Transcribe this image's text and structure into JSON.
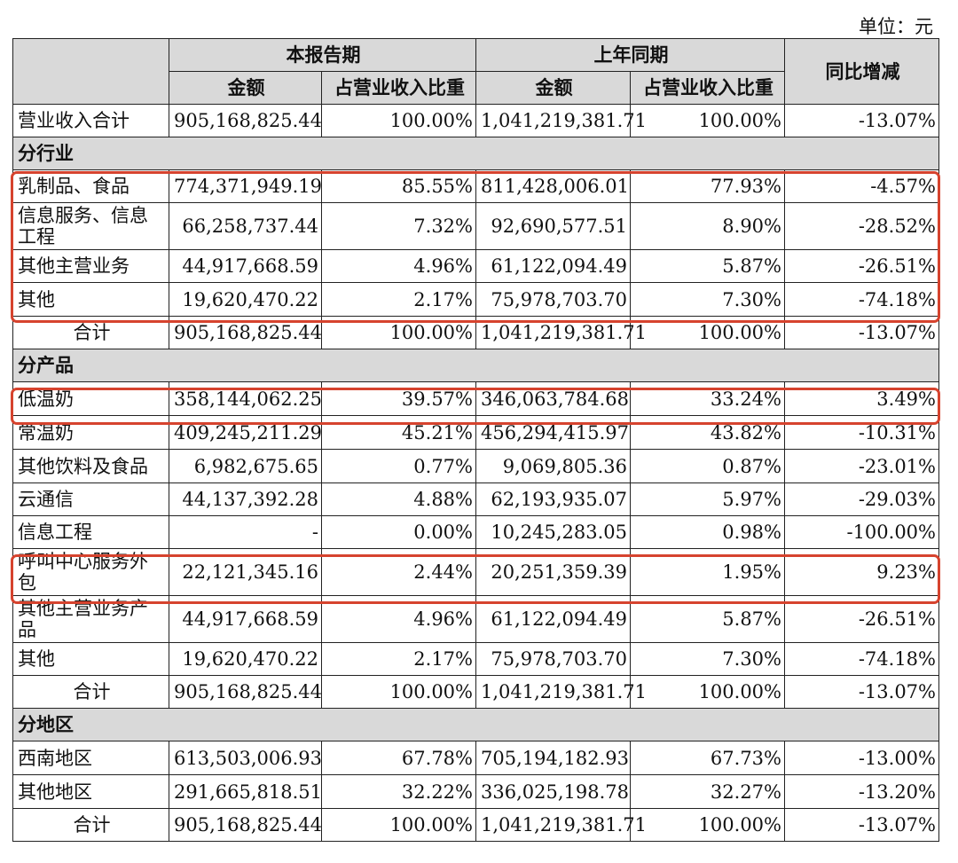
{
  "unit_label": "单位：元",
  "header": {
    "current_period": "本报告期",
    "prior_period": "上年同期",
    "yoy_change": "同比增减",
    "amount": "金额",
    "share": "占营业收入比重"
  },
  "total_revenue": {
    "label": "营业收入合计",
    "cur_amount": "905,168,825.44",
    "cur_share": "100.00%",
    "prev_amount": "1,041,219,381.71",
    "prev_share": "100.00%",
    "change": "-13.07%"
  },
  "by_industry": {
    "title": "分行业",
    "rows": [
      {
        "label": "乳制品、食品",
        "cur_amount": "774,371,949.19",
        "cur_share": "85.55%",
        "prev_amount": "811,428,006.01",
        "prev_share": "77.93%",
        "change": "-4.57%"
      },
      {
        "label": "信息服务、信息工程",
        "cur_amount": "66,258,737.44",
        "cur_share": "7.32%",
        "prev_amount": "92,690,577.51",
        "prev_share": "8.90%",
        "change": "-28.52%"
      },
      {
        "label": "其他主营业务",
        "cur_amount": "44,917,668.59",
        "cur_share": "4.96%",
        "prev_amount": "61,122,094.49",
        "prev_share": "5.87%",
        "change": "-26.51%"
      },
      {
        "label": "其他",
        "cur_amount": "19,620,470.22",
        "cur_share": "2.17%",
        "prev_amount": "75,978,703.70",
        "prev_share": "7.30%",
        "change": "-74.18%"
      }
    ],
    "total": {
      "label": "合计",
      "cur_amount": "905,168,825.44",
      "cur_share": "100.00%",
      "prev_amount": "1,041,219,381.71",
      "prev_share": "100.00%",
      "change": "-13.07%"
    }
  },
  "by_product": {
    "title": "分产品",
    "rows": [
      {
        "label": "低温奶",
        "cur_amount": "358,144,062.25",
        "cur_share": "39.57%",
        "prev_amount": "346,063,784.68",
        "prev_share": "33.24%",
        "change": "3.49%"
      },
      {
        "label": "常温奶",
        "cur_amount": "409,245,211.29",
        "cur_share": "45.21%",
        "prev_amount": "456,294,415.97",
        "prev_share": "43.82%",
        "change": "-10.31%"
      },
      {
        "label": "其他饮料及食品",
        "cur_amount": "6,982,675.65",
        "cur_share": "0.77%",
        "prev_amount": "9,069,805.36",
        "prev_share": "0.87%",
        "change": "-23.01%"
      },
      {
        "label": "云通信",
        "cur_amount": "44,137,392.28",
        "cur_share": "4.88%",
        "prev_amount": "62,193,935.07",
        "prev_share": "5.97%",
        "change": "-29.03%"
      },
      {
        "label": "信息工程",
        "cur_amount": "-",
        "cur_share": "0.00%",
        "prev_amount": "10,245,283.05",
        "prev_share": "0.98%",
        "change": "-100.00%"
      },
      {
        "label": "呼叫中心服务外包",
        "cur_amount": "22,121,345.16",
        "cur_share": "2.44%",
        "prev_amount": "20,251,359.39",
        "prev_share": "1.95%",
        "change": "9.23%"
      },
      {
        "label": "其他主营业务产品",
        "cur_amount": "44,917,668.59",
        "cur_share": "4.96%",
        "prev_amount": "61,122,094.49",
        "prev_share": "5.87%",
        "change": "-26.51%"
      },
      {
        "label": "其他",
        "cur_amount": "19,620,470.22",
        "cur_share": "2.17%",
        "prev_amount": "75,978,703.70",
        "prev_share": "7.30%",
        "change": "-74.18%"
      }
    ],
    "total": {
      "label": "合计",
      "cur_amount": "905,168,825.44",
      "cur_share": "100.00%",
      "prev_amount": "1,041,219,381.71",
      "prev_share": "100.00%",
      "change": "-13.07%"
    }
  },
  "by_region": {
    "title": "分地区",
    "rows": [
      {
        "label": "西南地区",
        "cur_amount": "613,503,006.93",
        "cur_share": "67.78%",
        "prev_amount": "705,194,182.93",
        "prev_share": "67.73%",
        "change": "-13.00%"
      },
      {
        "label": "其他地区",
        "cur_amount": "291,665,818.51",
        "cur_share": "32.22%",
        "prev_amount": "336,025,198.78",
        "prev_share": "32.27%",
        "change": "-13.20%"
      }
    ],
    "total": {
      "label": "合计",
      "cur_amount": "905,168,825.44",
      "cur_share": "100.00%",
      "prev_amount": "1,041,219,381.71",
      "prev_share": "100.00%",
      "change": "-13.07%"
    }
  },
  "highlight_color": "#d6432e",
  "header_bg": "#d9d9d9"
}
